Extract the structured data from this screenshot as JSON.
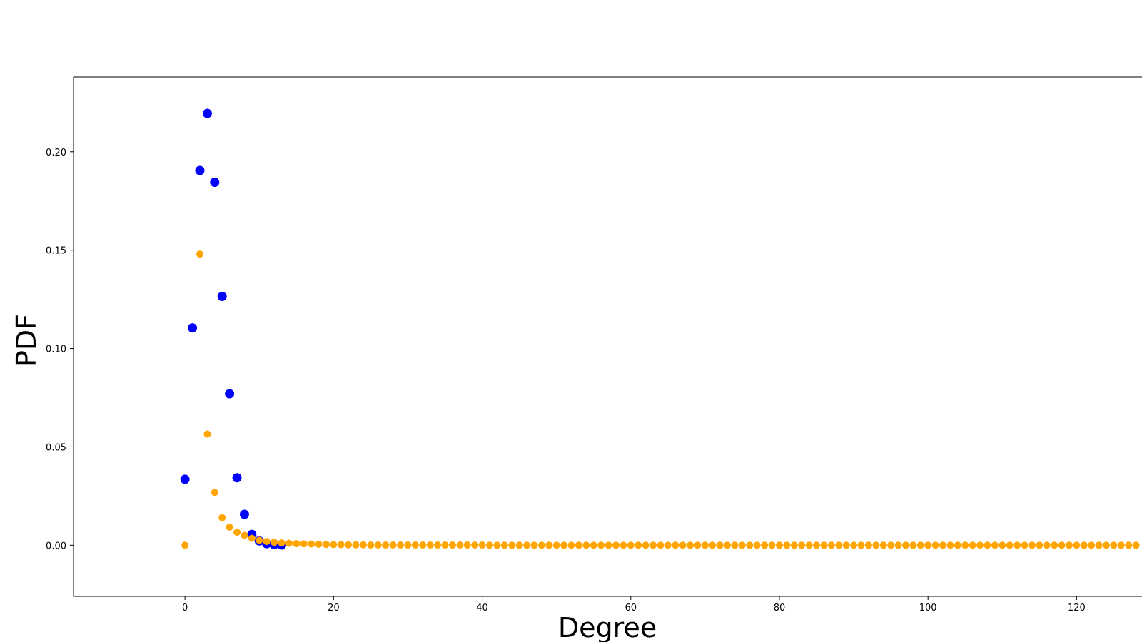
{
  "chart_data": {
    "type": "scatter",
    "title": "",
    "xlabel": "Degree",
    "ylabel": "PDF",
    "xlim": [
      -15,
      128.8
    ],
    "ylim": [
      -0.026,
      0.238
    ],
    "xticks": [
      0,
      20,
      40,
      60,
      80,
      100,
      120
    ],
    "yticks": [
      0.0,
      0.05,
      0.1,
      0.15,
      0.2
    ],
    "grid": false,
    "legend": "none",
    "series": [
      {
        "color": "#0000ff",
        "marker_size": "large",
        "x": [
          0,
          1,
          2,
          3,
          4,
          5,
          6,
          7,
          8,
          9,
          10,
          11,
          12,
          13
        ],
        "y": [
          0.0335,
          0.1105,
          0.1905,
          0.2195,
          0.1845,
          0.1265,
          0.077,
          0.0343,
          0.0157,
          0.0055,
          0.0022,
          0.0008,
          0.0003,
          0.0001
        ]
      },
      {
        "color": "#ffa500",
        "marker_size": "small",
        "x": [
          0,
          2,
          3,
          4,
          5,
          6,
          7,
          8,
          9,
          10,
          11,
          12,
          13,
          14,
          15,
          16,
          17,
          18,
          19,
          20,
          21,
          22,
          23,
          24,
          25,
          26,
          27,
          28,
          29,
          30,
          31,
          32,
          33,
          34,
          35,
          36,
          37,
          38,
          39,
          40,
          41,
          42,
          43,
          44,
          45,
          46,
          47,
          48,
          49,
          50,
          51,
          52,
          53,
          54,
          55,
          56,
          57,
          58,
          59,
          60,
          61,
          62,
          63,
          64,
          65,
          66,
          67,
          68,
          69,
          70,
          71,
          72,
          73,
          74,
          75,
          76,
          77,
          78,
          79,
          80,
          81,
          82,
          83,
          84,
          85,
          86,
          87,
          88,
          89,
          90,
          91,
          92,
          93,
          94,
          95,
          96,
          97,
          98,
          99,
          100,
          101,
          102,
          103,
          104,
          105,
          106,
          107,
          108,
          109,
          110,
          111,
          112,
          113,
          114,
          115,
          116,
          117,
          118,
          119,
          120,
          121,
          122,
          123,
          124,
          125,
          126,
          127,
          128
        ],
        "y": [
          0.0,
          0.148,
          0.0565,
          0.0268,
          0.014,
          0.0092,
          0.0066,
          0.005,
          0.0035,
          0.0025,
          0.0019,
          0.0015,
          0.0012,
          0.001,
          0.0008,
          0.0007,
          0.0006,
          0.0005,
          0.0004,
          0.0003,
          0.0003,
          0.0002,
          0.0002,
          0.0002,
          0.0001,
          0.0001,
          0.0001,
          0.0001,
          0.0001,
          0.0001,
          0.0001,
          0.0001,
          0.0001,
          0.0001,
          0.0001,
          0.0001,
          0.0001,
          0.0001,
          0.0001,
          0.0001,
          0.0,
          0.0,
          0.0,
          0.0,
          0.0,
          0.0,
          0.0,
          0.0,
          0.0,
          0.0,
          0.0,
          0.0,
          0.0,
          0.0,
          0.0,
          0.0,
          0.0,
          0.0,
          0.0,
          0.0,
          0.0,
          0.0,
          0.0,
          0.0,
          0.0,
          0.0,
          0.0,
          0.0,
          0.0,
          0.0,
          0.0,
          0.0,
          0.0,
          0.0,
          0.0,
          0.0,
          0.0,
          0.0,
          0.0,
          0.0,
          0.0,
          0.0,
          0.0,
          0.0,
          0.0,
          0.0,
          0.0,
          0.0,
          0.0,
          0.0,
          0.0,
          0.0,
          0.0,
          0.0,
          0.0,
          0.0,
          0.0,
          0.0,
          0.0,
          0.0,
          0.0,
          0.0,
          0.0,
          0.0,
          0.0,
          0.0,
          0.0,
          0.0,
          0.0,
          0.0,
          0.0,
          0.0,
          0.0,
          0.0,
          0.0,
          0.0,
          0.0,
          0.0,
          0.0,
          0.0,
          0.0,
          0.0,
          0.0,
          0.0,
          0.0,
          0.0,
          0.0,
          0.0
        ]
      }
    ]
  }
}
